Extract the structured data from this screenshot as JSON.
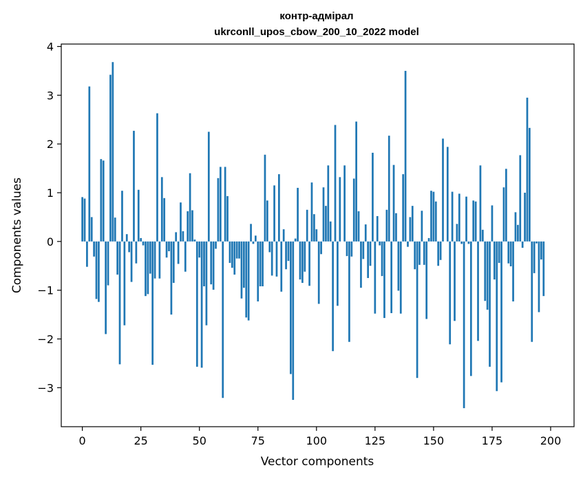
{
  "chart_data": {
    "type": "bar",
    "title": "контр-адмірал",
    "subtitle": "ukrconll_upos_cbow_200_10_2022 model",
    "xlabel": "Vector components",
    "ylabel": "Components values",
    "xlim": [
      -9,
      210
    ],
    "ylim": [
      -3.8,
      4.05
    ],
    "xticks": [
      0,
      25,
      50,
      75,
      100,
      125,
      150,
      175,
      200
    ],
    "yticks": [
      -3,
      -2,
      -1,
      0,
      1,
      2,
      3,
      4
    ],
    "ytick_labels": [
      "−3",
      "−2",
      "−1",
      "0",
      "1",
      "2",
      "3",
      "4"
    ],
    "bar_color": "#1f77b4",
    "grid": false,
    "values": [
      0.91,
      0.88,
      -0.52,
      3.18,
      0.5,
      -0.31,
      -1.18,
      -1.24,
      1.69,
      1.66,
      -1.9,
      -0.9,
      3.42,
      3.68,
      0.49,
      -0.68,
      -2.52,
      1.04,
      -1.72,
      0.15,
      -0.22,
      -0.83,
      2.27,
      -0.45,
      1.06,
      0.07,
      -0.08,
      -1.12,
      -1.08,
      -0.66,
      -2.53,
      -0.76,
      2.63,
      -0.76,
      1.32,
      0.89,
      -0.33,
      -0.2,
      -1.5,
      -0.85,
      0.19,
      -0.46,
      0.8,
      0.21,
      -0.62,
      0.62,
      1.4,
      0.64,
      0.04,
      -2.57,
      -0.33,
      -2.59,
      -0.92,
      -1.72,
      2.25,
      -0.88,
      -0.99,
      -0.15,
      1.3,
      1.53,
      -3.21,
      1.53,
      0.93,
      -0.44,
      -0.54,
      -0.68,
      -0.35,
      -0.35,
      -1.17,
      -0.95,
      -1.56,
      -1.62,
      0.36,
      -0.05,
      0.12,
      -1.23,
      -0.92,
      -0.92,
      1.78,
      0.84,
      -0.22,
      -0.7,
      1.15,
      -0.72,
      1.38,
      -1.03,
      0.25,
      -0.57,
      -0.4,
      -2.72,
      -3.25,
      0.06,
      1.1,
      -0.78,
      -0.85,
      -0.62,
      0.65,
      -0.91,
      1.21,
      0.56,
      0.25,
      -1.28,
      -0.26,
      1.11,
      0.73,
      1.56,
      0.41,
      -2.25,
      2.39,
      -1.32,
      1.32,
      0.0,
      1.56,
      -0.3,
      -2.06,
      -0.31,
      1.29,
      2.46,
      0.62,
      -0.95,
      -0.36,
      0.35,
      -0.75,
      -0.5,
      1.82,
      -1.48,
      0.52,
      -0.08,
      -0.71,
      -1.57,
      0.65,
      2.17,
      -1.47,
      1.57,
      0.58,
      -1.01,
      -1.48,
      1.38,
      3.5,
      -0.11,
      0.5,
      0.73,
      -0.57,
      -2.8,
      -0.48,
      0.63,
      -0.48,
      -1.59,
      0.07,
      1.04,
      1.02,
      0.82,
      -0.5,
      -0.38,
      2.11,
      0.0,
      1.94,
      -2.11,
      1.02,
      -1.63,
      0.36,
      0.98,
      -0.05,
      -3.42,
      0.92,
      -0.05,
      -2.76,
      0.84,
      0.82,
      -2.04,
      1.56,
      0.24,
      -1.22,
      -1.4,
      -2.57,
      0.74,
      -0.78,
      -3.07,
      -0.44,
      -2.89,
      1.11,
      1.49,
      -0.45,
      -0.51,
      -1.23,
      0.6,
      0.34,
      1.77,
      -0.13,
      1.0,
      2.95,
      2.33,
      -2.06,
      -0.65,
      -0.04,
      -1.45,
      -0.37,
      -1.12
    ]
  }
}
